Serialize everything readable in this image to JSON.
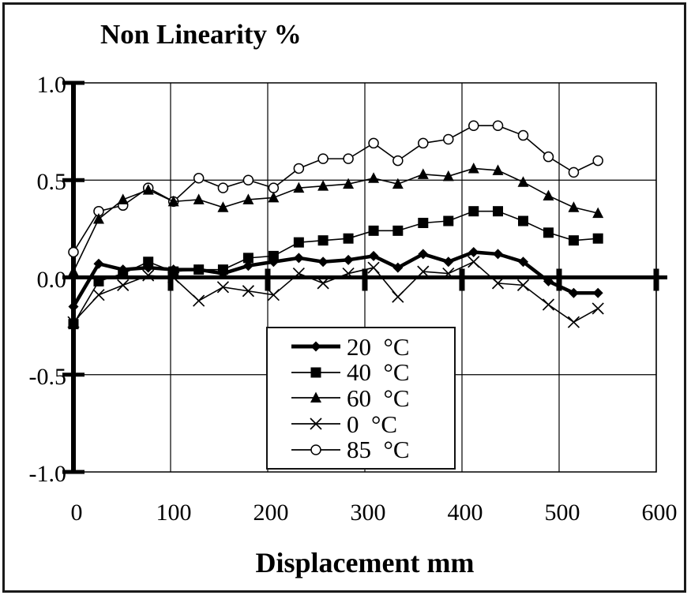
{
  "chart_data": {
    "type": "line",
    "title": "Non Linearity %",
    "xlabel": "Displacement mm",
    "ylabel": "Non Linearity %",
    "xlim": [
      0,
      600
    ],
    "ylim": [
      -1.0,
      1.0
    ],
    "grid": true,
    "legend_position": "inside-bottom-center",
    "colors": {
      "foreground": "#000000",
      "background": "#ffffff"
    },
    "xticks": [
      0,
      100,
      200,
      300,
      400,
      500,
      600
    ],
    "xtick_labels": [
      "0",
      "100",
      "200",
      "300",
      "400",
      "500",
      "600"
    ],
    "yticks": [
      1.0,
      0.5,
      0.0,
      -0.5,
      -1.0
    ],
    "ytick_labels": [
      "1.0",
      "0.5",
      "0.0",
      "-0.5",
      "-1.0"
    ],
    "x": [
      0,
      26,
      51,
      77,
      103,
      129,
      154,
      180,
      206,
      232,
      257,
      283,
      309,
      334,
      360,
      386,
      412,
      437,
      463,
      489,
      515,
      540
    ],
    "series": [
      {
        "name": "20 C",
        "legend_label": "20  °C",
        "marker": "diamond",
        "line": "thick",
        "values": [
          -0.15,
          0.07,
          0.04,
          0.05,
          0.04,
          0.04,
          0.02,
          0.06,
          0.08,
          0.1,
          0.08,
          0.09,
          0.11,
          0.05,
          0.12,
          0.08,
          0.13,
          0.12,
          0.08,
          -0.02,
          -0.08,
          -0.08
        ]
      },
      {
        "name": "40 C",
        "legend_label": "40  °C",
        "marker": "square",
        "line": "thin",
        "values": [
          -0.24,
          -0.02,
          0.02,
          0.08,
          0.03,
          0.04,
          0.04,
          0.1,
          0.11,
          0.18,
          0.19,
          0.2,
          0.24,
          0.24,
          0.28,
          0.29,
          0.34,
          0.34,
          0.29,
          0.23,
          0.19,
          0.2
        ]
      },
      {
        "name": "60 C",
        "legend_label": "60  °C",
        "marker": "triangle",
        "line": "thin",
        "values": [
          0.03,
          0.3,
          0.4,
          0.45,
          0.39,
          0.4,
          0.36,
          0.4,
          0.41,
          0.46,
          0.47,
          0.48,
          0.51,
          0.48,
          0.53,
          0.52,
          0.56,
          0.55,
          0.49,
          0.42,
          0.36,
          0.33
        ]
      },
      {
        "name": "0 C",
        "legend_label": "0  °C",
        "marker": "x",
        "line": "thin",
        "values": [
          -0.23,
          -0.09,
          -0.04,
          0.01,
          0.0,
          -0.12,
          -0.05,
          -0.07,
          -0.09,
          0.02,
          -0.03,
          0.02,
          0.05,
          -0.1,
          0.03,
          0.02,
          0.08,
          -0.03,
          -0.04,
          -0.14,
          -0.23,
          -0.16
        ]
      },
      {
        "name": "85 C",
        "legend_label": "85  °C",
        "marker": "circle",
        "line": "thin",
        "values": [
          0.13,
          0.34,
          0.37,
          0.46,
          0.39,
          0.51,
          0.46,
          0.5,
          0.46,
          0.56,
          0.61,
          0.61,
          0.69,
          0.6,
          0.69,
          0.71,
          0.78,
          0.78,
          0.73,
          0.62,
          0.54,
          0.6
        ]
      }
    ]
  }
}
